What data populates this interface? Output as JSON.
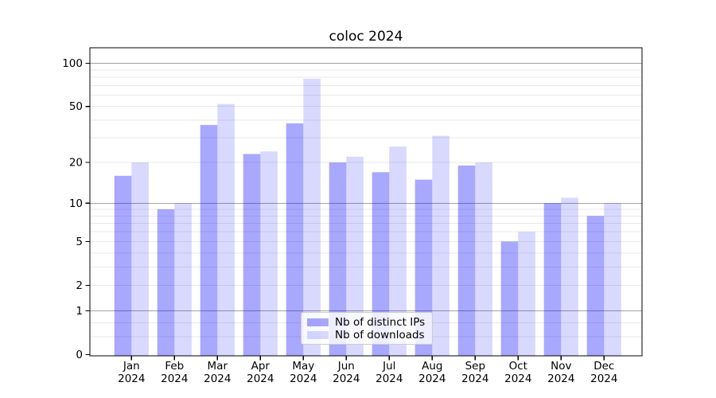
{
  "chart_data": {
    "type": "bar",
    "title": "coloc 2024",
    "categories": [
      "Jan 2024",
      "Feb 2024",
      "Mar 2024",
      "Apr 2024",
      "May 2024",
      "Jun 2024",
      "Jul 2024",
      "Aug 2024",
      "Sep 2024",
      "Oct 2024",
      "Nov 2024",
      "Dec 2024"
    ],
    "series": [
      {
        "name": "Nb of distinct IPs",
        "color": "rgba(0,0,255,0.34)",
        "values": [
          16,
          9,
          37,
          23,
          38,
          20,
          17,
          15,
          19,
          5,
          10,
          8
        ]
      },
      {
        "name": "Nb of downloads",
        "color": "rgba(0,0,255,0.15)",
        "values": [
          20,
          10,
          52,
          24,
          78,
          22,
          26,
          31,
          20,
          6,
          11,
          10
        ]
      }
    ],
    "xlabel": "",
    "ylabel": "",
    "y_scale": "log1p",
    "ylim": [
      0,
      127
    ],
    "y_tick_values": [
      0,
      1,
      2,
      5,
      10,
      20,
      50,
      100
    ],
    "y_tick_labels": [
      "0",
      "1",
      "2",
      "5",
      "10",
      "20",
      "50",
      "100"
    ],
    "y_minor_gridlines": [
      0.33,
      0.66,
      2,
      3,
      4,
      5,
      6,
      7,
      8,
      9,
      20,
      30,
      40,
      50,
      60,
      70,
      80,
      90
    ],
    "y_major_gridlines": [
      1,
      10,
      100
    ],
    "grid": true,
    "legend_position": "lower center",
    "colors": {
      "bar_dark": "rgba(0,0,255,0.34)",
      "bar_light": "rgba(0,0,255,0.15)",
      "major_grid": "#a3a3a3",
      "minor_grid": "#e9e9e9",
      "axis_frame": "#000000",
      "background": "#ffffff",
      "text": "#000000"
    }
  }
}
